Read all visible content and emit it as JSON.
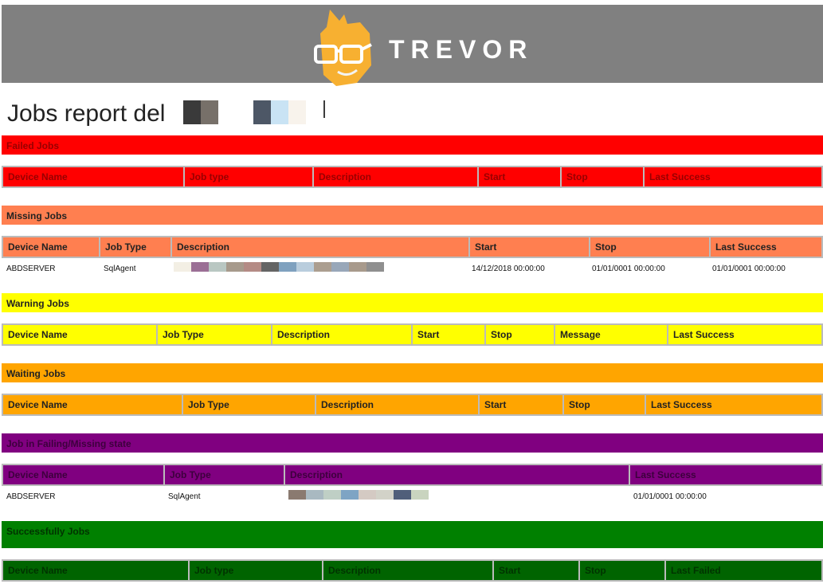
{
  "header": {
    "brand": "TREVOR",
    "logo_icon": "trevor-mascot-glasses-icon"
  },
  "report": {
    "title": "Jobs report del"
  },
  "colors": {
    "failed": "#ff0000",
    "missing": "#ff7f50",
    "warning": "#ffff00",
    "waiting": "#ffa500",
    "failing_missing": "#800080",
    "success_section": "#008000",
    "success_header": "#006400"
  },
  "sections": {
    "failed": {
      "title": "Failed Jobs",
      "headers": [
        "Device Name",
        "Job type",
        "Description",
        "Start",
        "Stop",
        "Last Success"
      ]
    },
    "missing": {
      "title": "Missing Jobs",
      "headers": [
        "Device Name",
        "Job Type",
        "Description",
        "Start",
        "Stop",
        "Last Success"
      ],
      "rows": [
        {
          "device": "ABDSERVER",
          "job_type": "SqlAgent",
          "start": "14/12/2018 00:00:00",
          "stop": "01/01/0001 00:00:00",
          "last_success": "01/01/0001 00:00:00"
        }
      ]
    },
    "warning": {
      "title": "Warning Jobs",
      "headers": [
        "Device Name",
        "Job Type",
        "Description",
        "Start",
        "Stop",
        "Message",
        "Last Success"
      ]
    },
    "waiting": {
      "title": "Waiting Jobs",
      "headers": [
        "Device Name",
        "Job Type",
        "Description",
        "Start",
        "Stop",
        "Last Success"
      ]
    },
    "failing_missing": {
      "title": "Job in Failing/Missing state",
      "headers": [
        "Device Name",
        "Job Type",
        "Description",
        "Last Success"
      ],
      "rows": [
        {
          "device": "ABDSERVER",
          "job_type": "SqlAgent",
          "last_success": "01/01/0001 00:00:00"
        }
      ]
    },
    "success": {
      "title": "Successfully Jobs",
      "headers": [
        "Device Name",
        "Job type",
        "Description",
        "Start",
        "Stop",
        "Last Failed"
      ]
    }
  }
}
